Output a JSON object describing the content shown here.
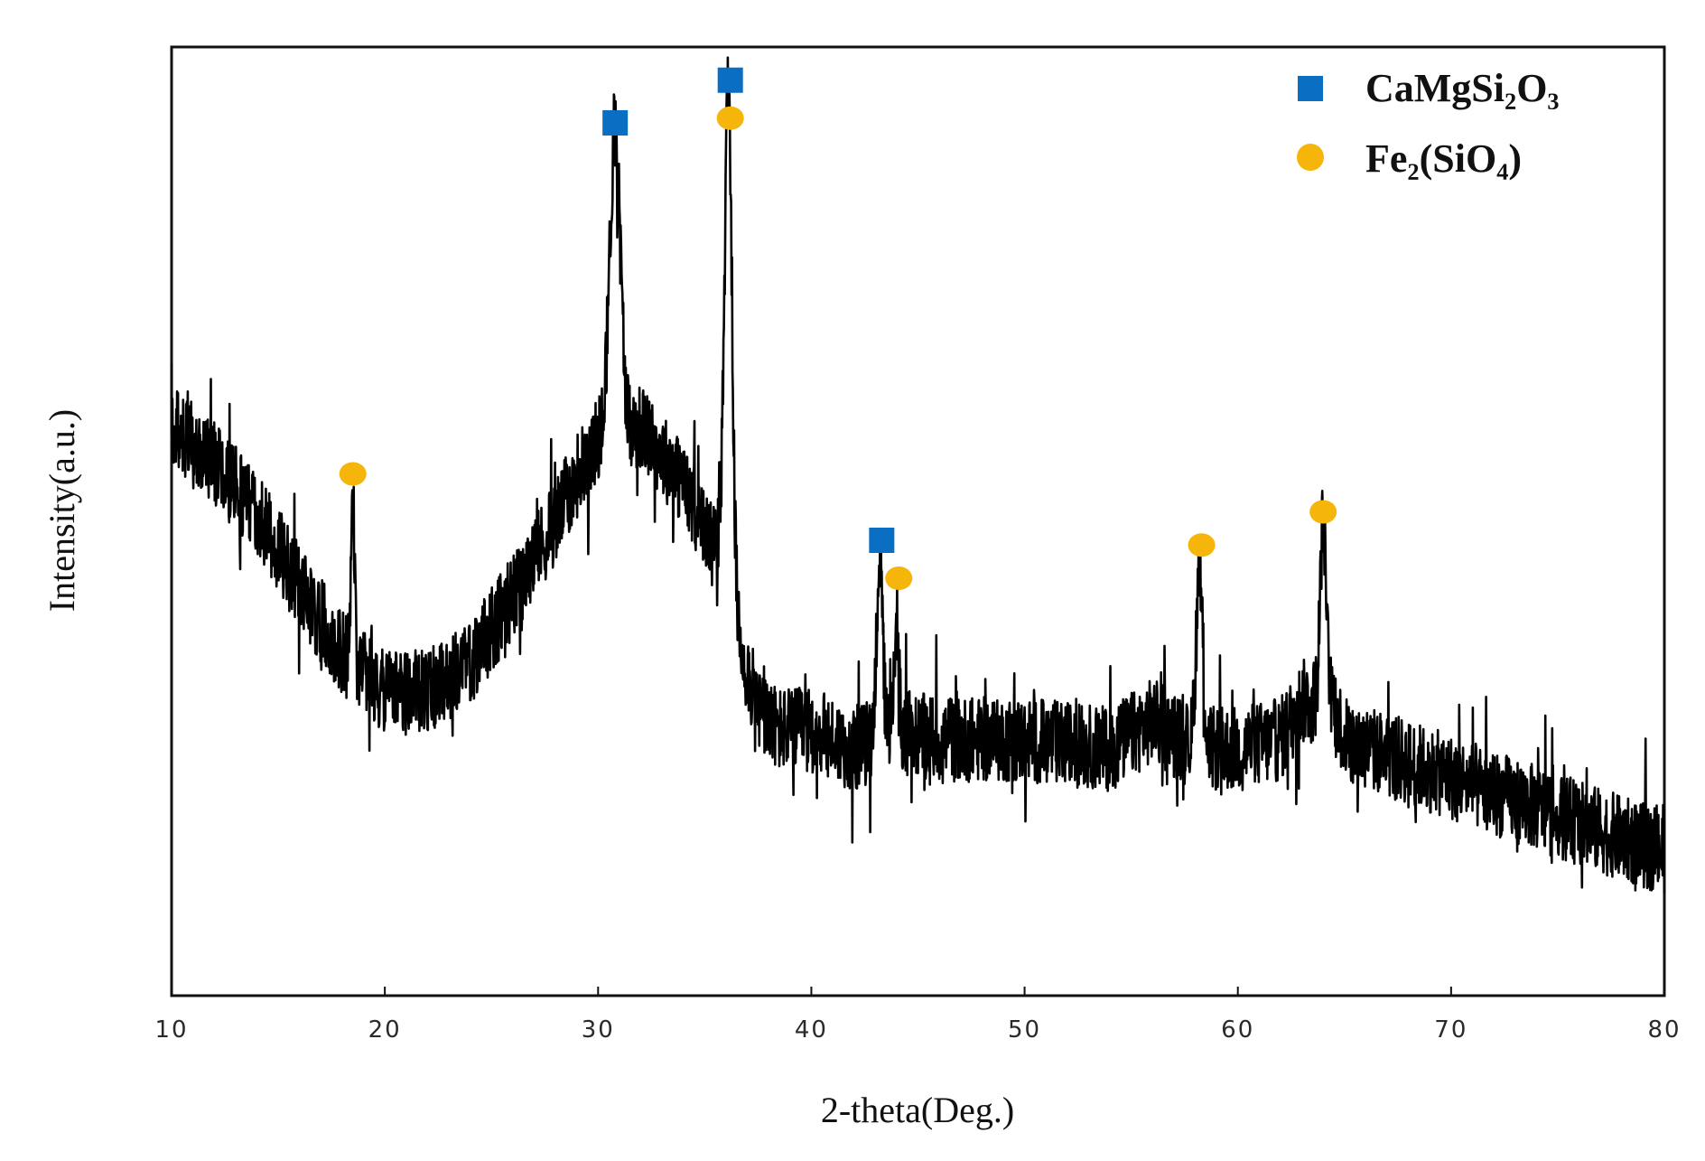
{
  "chart_data": {
    "type": "line",
    "xlabel": "2-theta(Deg.)",
    "ylabel": "Intensity(a.u.)",
    "xlim": [
      10,
      80
    ],
    "ylim": [
      0,
      100
    ],
    "x_ticks": [
      "10",
      "20",
      "30",
      "40",
      "50",
      "60",
      "70",
      "80"
    ],
    "grid": false,
    "legend_position": "top-right",
    "colors": {
      "trace": "#000000",
      "CaMgSi2O3": "#0a6fc2",
      "Fe2SiO4": "#f5b50a"
    },
    "baseline": [
      [
        10,
        60
      ],
      [
        12,
        56
      ],
      [
        14,
        51
      ],
      [
        16,
        43
      ],
      [
        18,
        36
      ],
      [
        20,
        32
      ],
      [
        22,
        32
      ],
      [
        24,
        35
      ],
      [
        26,
        42
      ],
      [
        28,
        50
      ],
      [
        29.5,
        57
      ],
      [
        30.5,
        60
      ],
      [
        32,
        60
      ],
      [
        34,
        54
      ],
      [
        35.5,
        47
      ],
      [
        36.8,
        36
      ],
      [
        37.5,
        30
      ],
      [
        38.5,
        28
      ],
      [
        40,
        28
      ],
      [
        42,
        26
      ],
      [
        44,
        28
      ],
      [
        46,
        27
      ],
      [
        50,
        27
      ],
      [
        54,
        26
      ],
      [
        56,
        29
      ],
      [
        58,
        26
      ],
      [
        60,
        26
      ],
      [
        62,
        27
      ],
      [
        63,
        31
      ],
      [
        64.5,
        31
      ],
      [
        65,
        27
      ],
      [
        70,
        23
      ],
      [
        75,
        19
      ],
      [
        80,
        15
      ]
    ],
    "peaks": [
      {
        "x": 18.5,
        "y": 53,
        "width": 0.12
      },
      {
        "x": 30.8,
        "y": 91,
        "width": 0.35
      },
      {
        "x": 36.1,
        "y": 96,
        "width": 0.25
      },
      {
        "x": 43.2,
        "y": 46,
        "width": 0.2
      },
      {
        "x": 44.0,
        "y": 40,
        "width": 0.15
      },
      {
        "x": 58.2,
        "y": 45,
        "width": 0.22
      },
      {
        "x": 64.0,
        "y": 50,
        "width": 0.2
      }
    ],
    "noise_amplitude": 4.5,
    "series": [
      {
        "name": "CaMgSi₂O₃",
        "marker": "square",
        "points": [
          {
            "x": 30.8,
            "y": 92
          },
          {
            "x": 36.2,
            "y": 96.5
          },
          {
            "x": 43.3,
            "y": 48
          }
        ]
      },
      {
        "name": "Fe₂(SiO₄)",
        "marker": "circle",
        "points": [
          {
            "x": 18.5,
            "y": 55
          },
          {
            "x": 36.2,
            "y": 92.5
          },
          {
            "x": 44.1,
            "y": 44
          },
          {
            "x": 58.3,
            "y": 47.5
          },
          {
            "x": 64.0,
            "y": 51
          }
        ]
      }
    ]
  }
}
